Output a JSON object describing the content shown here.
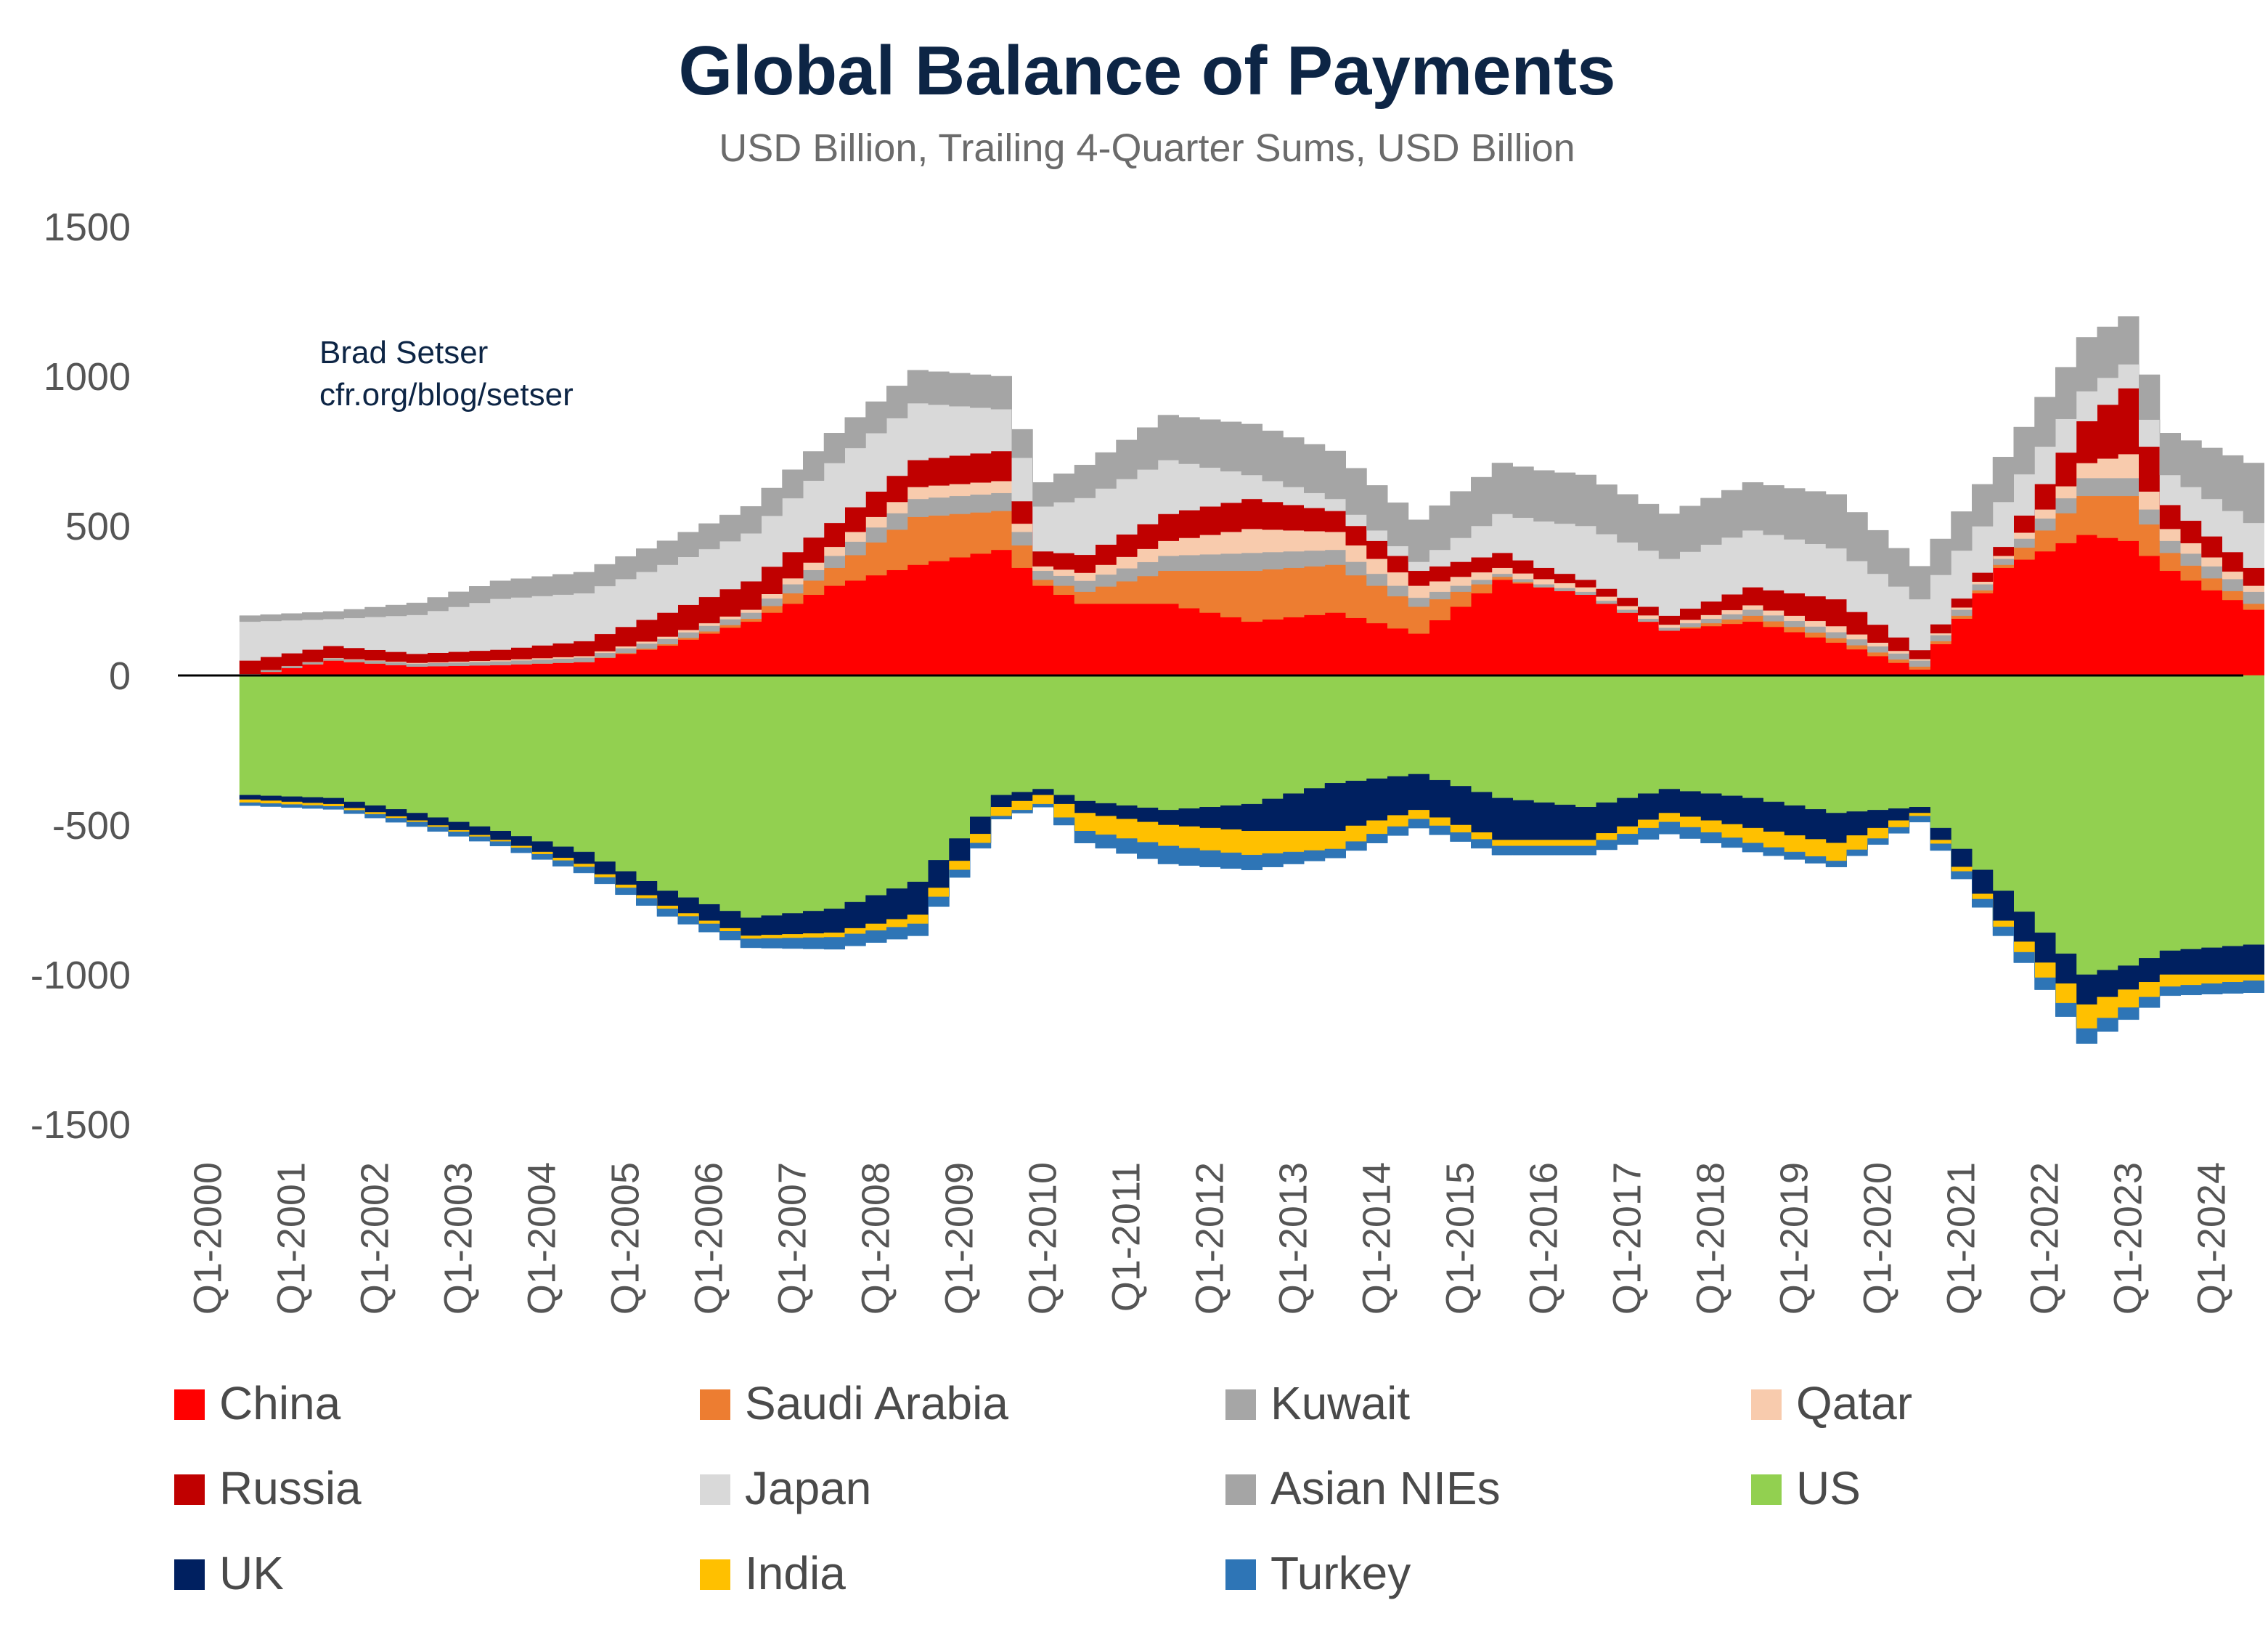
{
  "chart_data": {
    "type": "area",
    "stacked": true,
    "title": "Global Balance of Payments",
    "subtitle": "USD Billion, Trailing 4-Quarter Sums, USD Billion",
    "annotation": [
      "Brad Setser",
      "cfr.org/blog/setser"
    ],
    "ylim": [
      -1500,
      1500
    ],
    "yticks": [
      1500,
      1000,
      500,
      0,
      -500,
      -1000,
      -1500
    ],
    "xtick_labels": [
      "Q1-2000",
      "Q1-2001",
      "Q1-2002",
      "Q1-2003",
      "Q1-2004",
      "Q1-2005",
      "Q1-2006",
      "Q1-2007",
      "Q1-2008",
      "Q1-2009",
      "Q1-2010",
      "Q1-2011",
      "Q1-2012",
      "Q1-2013",
      "Q1-2014",
      "Q1-2015",
      "Q1-2016",
      "Q1-2017",
      "Q1-2018",
      "Q1-2019",
      "Q1-2020",
      "Q1-2021",
      "Q1-2022",
      "Q1-2023",
      "Q1-2024"
    ],
    "x_start": "Q1-2000",
    "x_end": "Q1-2024",
    "quarters": 97,
    "legend_position": "bottom",
    "series": [
      {
        "name": "China",
        "color": "#ff0000",
        "sign": "positive",
        "anchors": [
          [
            0,
            0
          ],
          [
            4,
            50
          ],
          [
            8,
            30
          ],
          [
            12,
            35
          ],
          [
            16,
            45
          ],
          [
            20,
            100
          ],
          [
            24,
            180
          ],
          [
            28,
            300
          ],
          [
            32,
            370
          ],
          [
            36,
            420
          ],
          [
            38,
            300
          ],
          [
            40,
            240
          ],
          [
            44,
            240
          ],
          [
            48,
            180
          ],
          [
            52,
            210
          ],
          [
            56,
            140
          ],
          [
            60,
            320
          ],
          [
            64,
            270
          ],
          [
            68,
            150
          ],
          [
            72,
            180
          ],
          [
            76,
            110
          ],
          [
            80,
            20
          ],
          [
            84,
            360
          ],
          [
            88,
            470
          ],
          [
            90,
            450
          ],
          [
            92,
            350
          ],
          [
            96,
            220
          ]
        ]
      },
      {
        "name": "Saudi Arabia",
        "color": "#ed7d31",
        "sign": "positive",
        "anchors": [
          [
            0,
            0
          ],
          [
            4,
            0
          ],
          [
            16,
            0
          ],
          [
            24,
            10
          ],
          [
            28,
            60
          ],
          [
            32,
            160
          ],
          [
            36,
            130
          ],
          [
            38,
            20
          ],
          [
            40,
            40
          ],
          [
            44,
            110
          ],
          [
            48,
            170
          ],
          [
            52,
            160
          ],
          [
            56,
            90
          ],
          [
            60,
            10
          ],
          [
            62,
            0
          ],
          [
            68,
            0
          ],
          [
            72,
            20
          ],
          [
            76,
            15
          ],
          [
            80,
            10
          ],
          [
            84,
            10
          ],
          [
            88,
            130
          ],
          [
            90,
            150
          ],
          [
            92,
            60
          ],
          [
            96,
            20
          ]
        ]
      },
      {
        "name": "Kuwait",
        "color": "#a6a6a6",
        "sign": "positive",
        "anchors": [
          [
            0,
            5
          ],
          [
            24,
            20
          ],
          [
            28,
            40
          ],
          [
            32,
            60
          ],
          [
            36,
            60
          ],
          [
            38,
            30
          ],
          [
            44,
            50
          ],
          [
            48,
            60
          ],
          [
            52,
            50
          ],
          [
            56,
            30
          ],
          [
            60,
            10
          ],
          [
            64,
            10
          ],
          [
            68,
            10
          ],
          [
            72,
            20
          ],
          [
            76,
            20
          ],
          [
            80,
            20
          ],
          [
            84,
            20
          ],
          [
            88,
            60
          ],
          [
            90,
            60
          ],
          [
            92,
            40
          ],
          [
            96,
            40
          ]
        ]
      },
      {
        "name": "Qatar",
        "color": "#f8cbad",
        "sign": "positive",
        "anchors": [
          [
            0,
            0
          ],
          [
            16,
            5
          ],
          [
            24,
            10
          ],
          [
            28,
            30
          ],
          [
            32,
            40
          ],
          [
            36,
            40
          ],
          [
            38,
            15
          ],
          [
            44,
            50
          ],
          [
            48,
            80
          ],
          [
            52,
            60
          ],
          [
            56,
            40
          ],
          [
            60,
            20
          ],
          [
            64,
            15
          ],
          [
            68,
            10
          ],
          [
            72,
            15
          ],
          [
            76,
            20
          ],
          [
            80,
            5
          ],
          [
            84,
            10
          ],
          [
            88,
            50
          ],
          [
            90,
            80
          ],
          [
            92,
            40
          ],
          [
            96,
            20
          ]
        ]
      },
      {
        "name": "Russia",
        "color": "#c00000",
        "sign": "positive",
        "anchors": [
          [
            0,
            45
          ],
          [
            4,
            40
          ],
          [
            8,
            30
          ],
          [
            12,
            35
          ],
          [
            16,
            50
          ],
          [
            20,
            80
          ],
          [
            24,
            95
          ],
          [
            28,
            80
          ],
          [
            32,
            90
          ],
          [
            36,
            100
          ],
          [
            38,
            50
          ],
          [
            40,
            60
          ],
          [
            44,
            90
          ],
          [
            48,
            100
          ],
          [
            52,
            70
          ],
          [
            56,
            50
          ],
          [
            60,
            50
          ],
          [
            64,
            25
          ],
          [
            68,
            30
          ],
          [
            72,
            60
          ],
          [
            76,
            90
          ],
          [
            80,
            30
          ],
          [
            84,
            30
          ],
          [
            88,
            140
          ],
          [
            90,
            220
          ],
          [
            92,
            80
          ],
          [
            96,
            60
          ]
        ]
      },
      {
        "name": "Japan",
        "color": "#d9d9d9",
        "sign": "positive",
        "anchors": [
          [
            0,
            130
          ],
          [
            4,
            90
          ],
          [
            8,
            130
          ],
          [
            12,
            170
          ],
          [
            16,
            160
          ],
          [
            20,
            160
          ],
          [
            24,
            160
          ],
          [
            28,
            200
          ],
          [
            32,
            190
          ],
          [
            36,
            140
          ],
          [
            38,
            150
          ],
          [
            40,
            190
          ],
          [
            44,
            180
          ],
          [
            48,
            80
          ],
          [
            52,
            40
          ],
          [
            56,
            30
          ],
          [
            60,
            130
          ],
          [
            64,
            180
          ],
          [
            68,
            190
          ],
          [
            72,
            190
          ],
          [
            76,
            170
          ],
          [
            80,
            170
          ],
          [
            84,
            150
          ],
          [
            88,
            100
          ],
          [
            90,
            80
          ],
          [
            92,
            100
          ],
          [
            96,
            150
          ]
        ]
      },
      {
        "name": "Asian NIEs",
        "color": "#a5a5a5",
        "sign": "positive",
        "anchors": [
          [
            0,
            20
          ],
          [
            4,
            25
          ],
          [
            8,
            40
          ],
          [
            12,
            60
          ],
          [
            16,
            70
          ],
          [
            20,
            80
          ],
          [
            24,
            90
          ],
          [
            28,
            100
          ],
          [
            32,
            110
          ],
          [
            36,
            110
          ],
          [
            38,
            80
          ],
          [
            40,
            110
          ],
          [
            44,
            150
          ],
          [
            48,
            170
          ],
          [
            52,
            160
          ],
          [
            56,
            140
          ],
          [
            60,
            170
          ],
          [
            64,
            170
          ],
          [
            68,
            150
          ],
          [
            72,
            160
          ],
          [
            76,
            180
          ],
          [
            80,
            110
          ],
          [
            84,
            150
          ],
          [
            88,
            180
          ],
          [
            90,
            160
          ],
          [
            92,
            140
          ],
          [
            96,
            200
          ]
        ]
      },
      {
        "name": "US",
        "color": "#92d050",
        "sign": "negative",
        "anchors": [
          [
            0,
            400
          ],
          [
            4,
            410
          ],
          [
            8,
            460
          ],
          [
            12,
            520
          ],
          [
            16,
            590
          ],
          [
            20,
            720
          ],
          [
            24,
            810
          ],
          [
            28,
            780
          ],
          [
            32,
            690
          ],
          [
            36,
            400
          ],
          [
            38,
            380
          ],
          [
            40,
            420
          ],
          [
            44,
            450
          ],
          [
            48,
            430
          ],
          [
            52,
            360
          ],
          [
            56,
            330
          ],
          [
            60,
            410
          ],
          [
            64,
            440
          ],
          [
            68,
            380
          ],
          [
            72,
            410
          ],
          [
            76,
            460
          ],
          [
            80,
            440
          ],
          [
            84,
            720
          ],
          [
            88,
            1000
          ],
          [
            90,
            970
          ],
          [
            92,
            920
          ],
          [
            96,
            900
          ]
        ]
      },
      {
        "name": "UK",
        "color": "#002060",
        "sign": "negative",
        "anchors": [
          [
            0,
            15
          ],
          [
            4,
            20
          ],
          [
            8,
            25
          ],
          [
            12,
            30
          ],
          [
            16,
            40
          ],
          [
            20,
            50
          ],
          [
            24,
            60
          ],
          [
            28,
            80
          ],
          [
            32,
            110
          ],
          [
            36,
            40
          ],
          [
            38,
            20
          ],
          [
            40,
            40
          ],
          [
            44,
            50
          ],
          [
            48,
            90
          ],
          [
            52,
            160
          ],
          [
            56,
            120
          ],
          [
            60,
            140
          ],
          [
            64,
            110
          ],
          [
            68,
            80
          ],
          [
            72,
            100
          ],
          [
            76,
            100
          ],
          [
            80,
            20
          ],
          [
            84,
            100
          ],
          [
            88,
            100
          ],
          [
            90,
            80
          ],
          [
            92,
            80
          ],
          [
            96,
            100
          ]
        ]
      },
      {
        "name": "India",
        "color": "#ffc000",
        "sign": "negative",
        "anchors": [
          [
            0,
            10
          ],
          [
            8,
            5
          ],
          [
            12,
            5
          ],
          [
            16,
            10
          ],
          [
            20,
            10
          ],
          [
            24,
            10
          ],
          [
            28,
            15
          ],
          [
            32,
            30
          ],
          [
            36,
            30
          ],
          [
            38,
            30
          ],
          [
            40,
            60
          ],
          [
            44,
            70
          ],
          [
            48,
            80
          ],
          [
            52,
            60
          ],
          [
            56,
            30
          ],
          [
            60,
            20
          ],
          [
            64,
            20
          ],
          [
            68,
            30
          ],
          [
            72,
            50
          ],
          [
            76,
            60
          ],
          [
            80,
            10
          ],
          [
            84,
            20
          ],
          [
            88,
            80
          ],
          [
            90,
            60
          ],
          [
            92,
            40
          ],
          [
            96,
            20
          ]
        ]
      },
      {
        "name": "Turkey",
        "color": "#2e75b6",
        "sign": "negative",
        "anchors": [
          [
            0,
            10
          ],
          [
            4,
            10
          ],
          [
            8,
            15
          ],
          [
            12,
            15
          ],
          [
            16,
            20
          ],
          [
            20,
            25
          ],
          [
            24,
            30
          ],
          [
            28,
            40
          ],
          [
            32,
            40
          ],
          [
            36,
            10
          ],
          [
            38,
            10
          ],
          [
            40,
            40
          ],
          [
            44,
            60
          ],
          [
            48,
            50
          ],
          [
            52,
            30
          ],
          [
            56,
            30
          ],
          [
            60,
            30
          ],
          [
            64,
            30
          ],
          [
            68,
            40
          ],
          [
            72,
            30
          ],
          [
            76,
            20
          ],
          [
            80,
            20
          ],
          [
            84,
            30
          ],
          [
            88,
            50
          ],
          [
            90,
            40
          ],
          [
            92,
            30
          ],
          [
            96,
            40
          ]
        ]
      }
    ]
  }
}
